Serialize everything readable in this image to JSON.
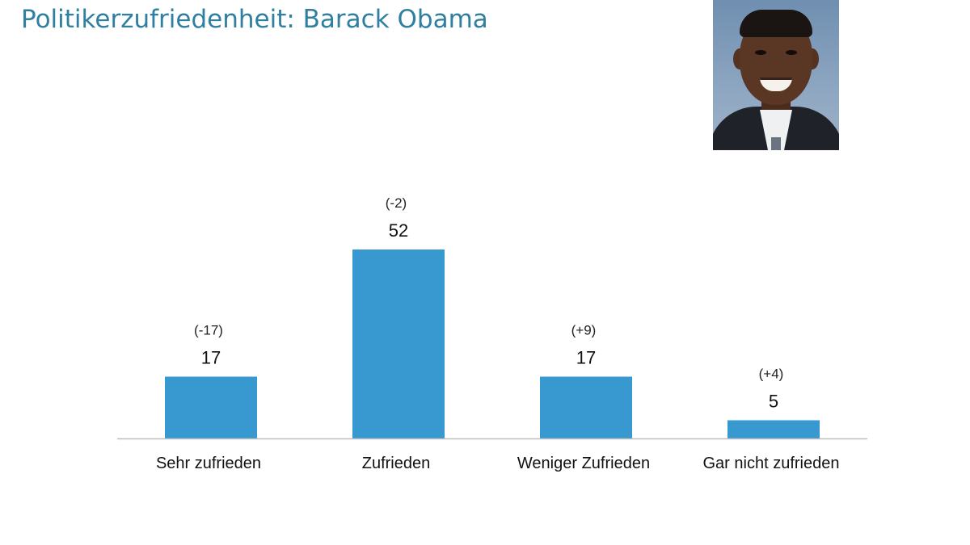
{
  "header": {
    "title": "Politikerzufriedenheit: Barack Obama"
  },
  "portrait": {
    "subject": "Barack Obama"
  },
  "chart_data": {
    "type": "bar",
    "title": "Politikerzufriedenheit: Barack Obama",
    "categories": [
      "Sehr zufrieden",
      "Zufrieden",
      "Weniger Zufrieden",
      "Gar nicht zufrieden"
    ],
    "values": [
      17,
      52,
      17,
      5
    ],
    "changes": [
      "(-17)",
      "(-2)",
      "(+9)",
      "(+4)"
    ],
    "xlabel": "",
    "ylabel": "",
    "ylim": [
      0,
      52
    ],
    "grid": false,
    "bar_color": "#3799cf"
  }
}
